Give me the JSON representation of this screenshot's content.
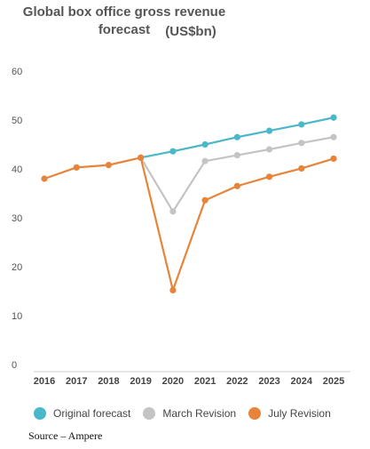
{
  "chart_data": {
    "type": "line",
    "title": "Global box office gross revenue forecast",
    "subtitle": "(US$bn)",
    "x": [
      "2016",
      "2017",
      "2018",
      "2019",
      "2020",
      "2021",
      "2022",
      "2023",
      "2024",
      "2025"
    ],
    "ylim": [
      0,
      60
    ],
    "yticks": [
      0,
      10,
      20,
      30,
      40,
      50,
      60
    ],
    "grid": false,
    "legend_position": "bottom",
    "series": [
      {
        "name": "Original forecast",
        "color": "#4ab8c8",
        "values": [
          null,
          null,
          null,
          42.3,
          43.6,
          45.0,
          46.5,
          47.8,
          49.1,
          50.5
        ]
      },
      {
        "name": "March Revision",
        "color": "#c4c4c4",
        "values": [
          null,
          null,
          null,
          42.3,
          31.3,
          41.6,
          42.8,
          44.0,
          45.3,
          46.5
        ]
      },
      {
        "name": "July Revision",
        "color": "#e8833a",
        "values": [
          38.0,
          40.3,
          40.8,
          42.3,
          15.2,
          33.6,
          36.5,
          38.4,
          40.1,
          42.1
        ]
      }
    ],
    "source": "Source – Ampere"
  }
}
